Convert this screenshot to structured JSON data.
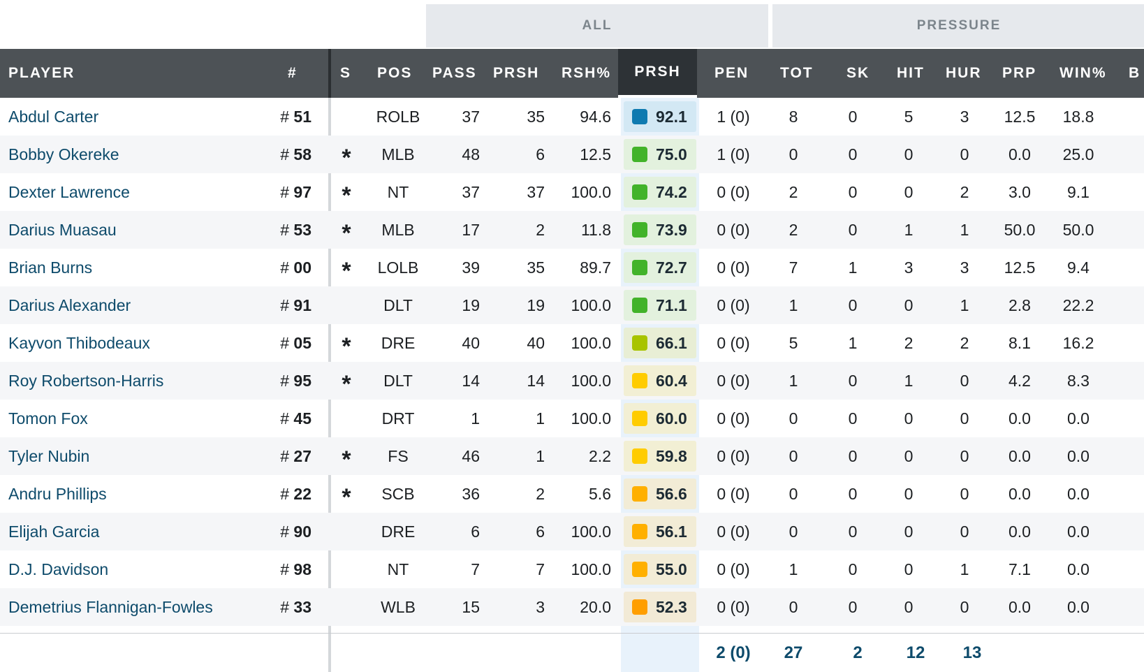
{
  "groups": {
    "all": "ALL",
    "pressure": "PRESSURE"
  },
  "headers": {
    "player": "PLAYER",
    "number": "#",
    "s": "S",
    "pos": "POS",
    "pass": "PASS",
    "prsh": "PRSH",
    "rsh_pct": "RSH%",
    "prsh_grade": "PRSH",
    "pen": "PEN",
    "tot": "TOT",
    "sk": "SK",
    "hit": "HIT",
    "hur": "HUR",
    "prp": "PRP",
    "win_pct": "WIN%",
    "cut": "B"
  },
  "colors": {
    "grade_blue": "#0f7ab0",
    "grade_green": "#42b32a",
    "grade_yellowgreen": "#a8c400",
    "grade_yellow": "#ffcc00",
    "grade_orange": "#ffb000",
    "grade_deeporange": "#ff9e00"
  },
  "rows": [
    {
      "name": "Abdul Carter",
      "num_prefix": "# ",
      "num": "51",
      "s": "",
      "pos": "ROLB",
      "pass": "37",
      "prsh": "35",
      "rsh": "94.6",
      "grade": "92.1",
      "tier": "blue",
      "bg": "#d3e8f4",
      "pen": "1 (0)",
      "tot": "8",
      "sk": "0",
      "hit": "5",
      "hur": "3",
      "prp": "12.5",
      "win": "18.8"
    },
    {
      "name": "Bobby Okereke",
      "num_prefix": "# ",
      "num": "58",
      "s": "*",
      "pos": "MLB",
      "pass": "48",
      "prsh": "6",
      "rsh": "12.5",
      "grade": "75.0",
      "tier": "green",
      "bg": "#e3f1de",
      "pen": "1 (0)",
      "tot": "0",
      "sk": "0",
      "hit": "0",
      "hur": "0",
      "prp": "0.0",
      "win": "25.0"
    },
    {
      "name": "Dexter Lawrence",
      "num_prefix": "# ",
      "num": "97",
      "s": "*",
      "pos": "NT",
      "pass": "37",
      "prsh": "37",
      "rsh": "100.0",
      "grade": "74.2",
      "tier": "green",
      "bg": "#e3f1de",
      "pen": "0 (0)",
      "tot": "2",
      "sk": "0",
      "hit": "0",
      "hur": "2",
      "prp": "3.0",
      "win": "9.1"
    },
    {
      "name": "Darius Muasau",
      "num_prefix": "# ",
      "num": "53",
      "s": "*",
      "pos": "MLB",
      "pass": "17",
      "prsh": "2",
      "rsh": "11.8",
      "grade": "73.9",
      "tier": "green",
      "bg": "#e3f1de",
      "pen": "0 (0)",
      "tot": "2",
      "sk": "0",
      "hit": "1",
      "hur": "1",
      "prp": "50.0",
      "win": "50.0"
    },
    {
      "name": "Brian Burns",
      "num_prefix": "# ",
      "num": "00",
      "s": "*",
      "pos": "LOLB",
      "pass": "39",
      "prsh": "35",
      "rsh": "89.7",
      "grade": "72.7",
      "tier": "green",
      "bg": "#e3f1de",
      "pen": "0 (0)",
      "tot": "7",
      "sk": "1",
      "hit": "3",
      "hur": "3",
      "prp": "12.5",
      "win": "9.4"
    },
    {
      "name": "Darius Alexander",
      "num_prefix": "# ",
      "num": "91",
      "s": "",
      "pos": "DLT",
      "pass": "19",
      "prsh": "19",
      "rsh": "100.0",
      "grade": "71.1",
      "tier": "green",
      "bg": "#e3f1de",
      "pen": "0 (0)",
      "tot": "1",
      "sk": "0",
      "hit": "0",
      "hur": "1",
      "prp": "2.8",
      "win": "22.2"
    },
    {
      "name": "Kayvon Thibodeaux",
      "num_prefix": "# ",
      "num": "05",
      "s": "*",
      "pos": "DRE",
      "pass": "40",
      "prsh": "40",
      "rsh": "100.0",
      "grade": "66.1",
      "tier": "yellowgreen",
      "bg": "#e8eed5",
      "pen": "0 (0)",
      "tot": "5",
      "sk": "1",
      "hit": "2",
      "hur": "2",
      "prp": "8.1",
      "win": "16.2"
    },
    {
      "name": "Roy Robertson-Harris",
      "num_prefix": "# ",
      "num": "95",
      "s": "*",
      "pos": "DLT",
      "pass": "14",
      "prsh": "14",
      "rsh": "100.0",
      "grade": "60.4",
      "tier": "yellow",
      "bg": "#f2efd4",
      "pen": "0 (0)",
      "tot": "1",
      "sk": "0",
      "hit": "1",
      "hur": "0",
      "prp": "4.2",
      "win": "8.3"
    },
    {
      "name": "Tomon Fox",
      "num_prefix": "# ",
      "num": "45",
      "s": "",
      "pos": "DRT",
      "pass": "1",
      "prsh": "1",
      "rsh": "100.0",
      "grade": "60.0",
      "tier": "yellow",
      "bg": "#f2efd4",
      "pen": "0 (0)",
      "tot": "0",
      "sk": "0",
      "hit": "0",
      "hur": "0",
      "prp": "0.0",
      "win": "0.0"
    },
    {
      "name": "Tyler Nubin",
      "num_prefix": "# ",
      "num": "27",
      "s": "*",
      "pos": "FS",
      "pass": "46",
      "prsh": "1",
      "rsh": "2.2",
      "grade": "59.8",
      "tier": "yellow",
      "bg": "#f2efd4",
      "pen": "0 (0)",
      "tot": "0",
      "sk": "0",
      "hit": "0",
      "hur": "0",
      "prp": "0.0",
      "win": "0.0"
    },
    {
      "name": "Andru Phillips",
      "num_prefix": "# ",
      "num": "22",
      "s": "*",
      "pos": "SCB",
      "pass": "36",
      "prsh": "2",
      "rsh": "5.6",
      "grade": "56.6",
      "tier": "orange",
      "bg": "#f2ecd6",
      "pen": "0 (0)",
      "tot": "0",
      "sk": "0",
      "hit": "0",
      "hur": "0",
      "prp": "0.0",
      "win": "0.0"
    },
    {
      "name": "Elijah Garcia",
      "num_prefix": "# ",
      "num": "90",
      "s": "",
      "pos": "DRE",
      "pass": "6",
      "prsh": "6",
      "rsh": "100.0",
      "grade": "56.1",
      "tier": "orange",
      "bg": "#f2ecd6",
      "pen": "0 (0)",
      "tot": "0",
      "sk": "0",
      "hit": "0",
      "hur": "0",
      "prp": "0.0",
      "win": "0.0"
    },
    {
      "name": "D.J. Davidson",
      "num_prefix": "# ",
      "num": "98",
      "s": "",
      "pos": "NT",
      "pass": "7",
      "prsh": "7",
      "rsh": "100.0",
      "grade": "55.0",
      "tier": "orange",
      "bg": "#f2ecd6",
      "pen": "0 (0)",
      "tot": "1",
      "sk": "0",
      "hit": "0",
      "hur": "1",
      "prp": "7.1",
      "win": "0.0"
    },
    {
      "name": "Demetrius Flannigan-Fowles",
      "num_prefix": "# ",
      "num": "33",
      "s": "",
      "pos": "WLB",
      "pass": "15",
      "prsh": "3",
      "rsh": "20.0",
      "grade": "52.3",
      "tier": "deeporange",
      "bg": "#f2ead6",
      "pen": "0 (0)",
      "tot": "0",
      "sk": "0",
      "hit": "0",
      "hur": "0",
      "prp": "0.0",
      "win": "0.0"
    }
  ],
  "totals": {
    "pen": "2 (0)",
    "tot": "27",
    "sk": "2",
    "hit": "12",
    "hur": "13"
  }
}
